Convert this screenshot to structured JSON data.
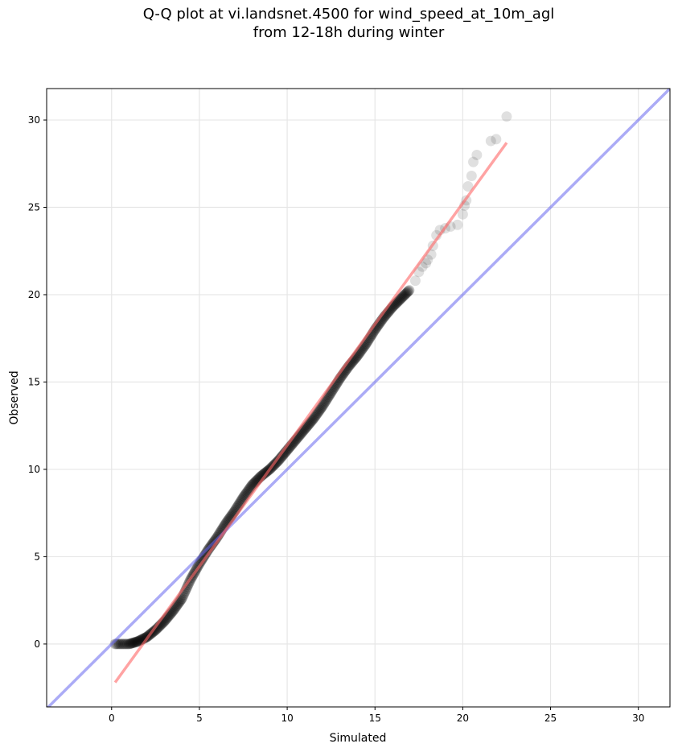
{
  "chart_data": {
    "type": "scatter",
    "title_lines": [
      "Q-Q plot at vi.landsnet.4500 for wind_speed_at_10m_agl",
      "from 12-18h during winter"
    ],
    "xlabel": "Simulated",
    "ylabel": "Observed",
    "xlim": [
      -3.7,
      31.8
    ],
    "ylim": [
      -3.6,
      31.8
    ],
    "xticks": [
      0,
      5,
      10,
      15,
      20,
      25,
      30
    ],
    "yticks": [
      0,
      5,
      10,
      15,
      20,
      25,
      30
    ],
    "grid": true,
    "point_color": "#000000",
    "fit_line_color": "#ff6666",
    "identity_line_color": "#6666ee",
    "quantile_curve": {
      "x": [
        0.2,
        1.0,
        1.5,
        2.0,
        2.5,
        3.0,
        3.5,
        4.0,
        4.5,
        5.0,
        5.5,
        6.0,
        6.5,
        7.0,
        7.5,
        8.0,
        8.5,
        9.0,
        9.5,
        10.0,
        10.5,
        11.0,
        11.5,
        12.0,
        12.5,
        13.0,
        13.5,
        14.0,
        14.5,
        15.0,
        15.5,
        16.0,
        16.5,
        17.0
      ],
      "y": [
        0.0,
        0.0,
        0.15,
        0.4,
        0.8,
        1.3,
        1.9,
        2.6,
        3.7,
        4.6,
        5.4,
        6.1,
        6.9,
        7.6,
        8.4,
        9.1,
        9.6,
        10.0,
        10.5,
        11.1,
        11.7,
        12.3,
        12.9,
        13.6,
        14.4,
        15.2,
        15.9,
        16.5,
        17.2,
        18.0,
        18.7,
        19.3,
        19.8,
        20.3
      ]
    },
    "sparse_points": {
      "x": [
        17.3,
        17.5,
        17.7,
        17.9,
        18.0,
        18.2,
        18.3,
        18.5,
        18.7,
        19.0,
        19.3,
        19.7,
        20.0,
        20.1,
        20.2,
        20.3,
        20.5,
        20.6,
        20.8,
        21.6,
        21.9,
        22.5
      ],
      "y": [
        20.8,
        21.3,
        21.6,
        21.8,
        22.0,
        22.3,
        22.8,
        23.4,
        23.7,
        23.8,
        23.9,
        24.0,
        24.6,
        25.1,
        25.4,
        26.2,
        26.8,
        27.6,
        28.0,
        28.8,
        28.9,
        30.2
      ]
    },
    "fit_line": {
      "x": [
        0.2,
        22.5
      ],
      "y": [
        -2.2,
        28.7
      ]
    },
    "identity_line": {
      "x": [
        -3.7,
        31.8
      ],
      "y": [
        -3.7,
        31.8
      ]
    }
  }
}
